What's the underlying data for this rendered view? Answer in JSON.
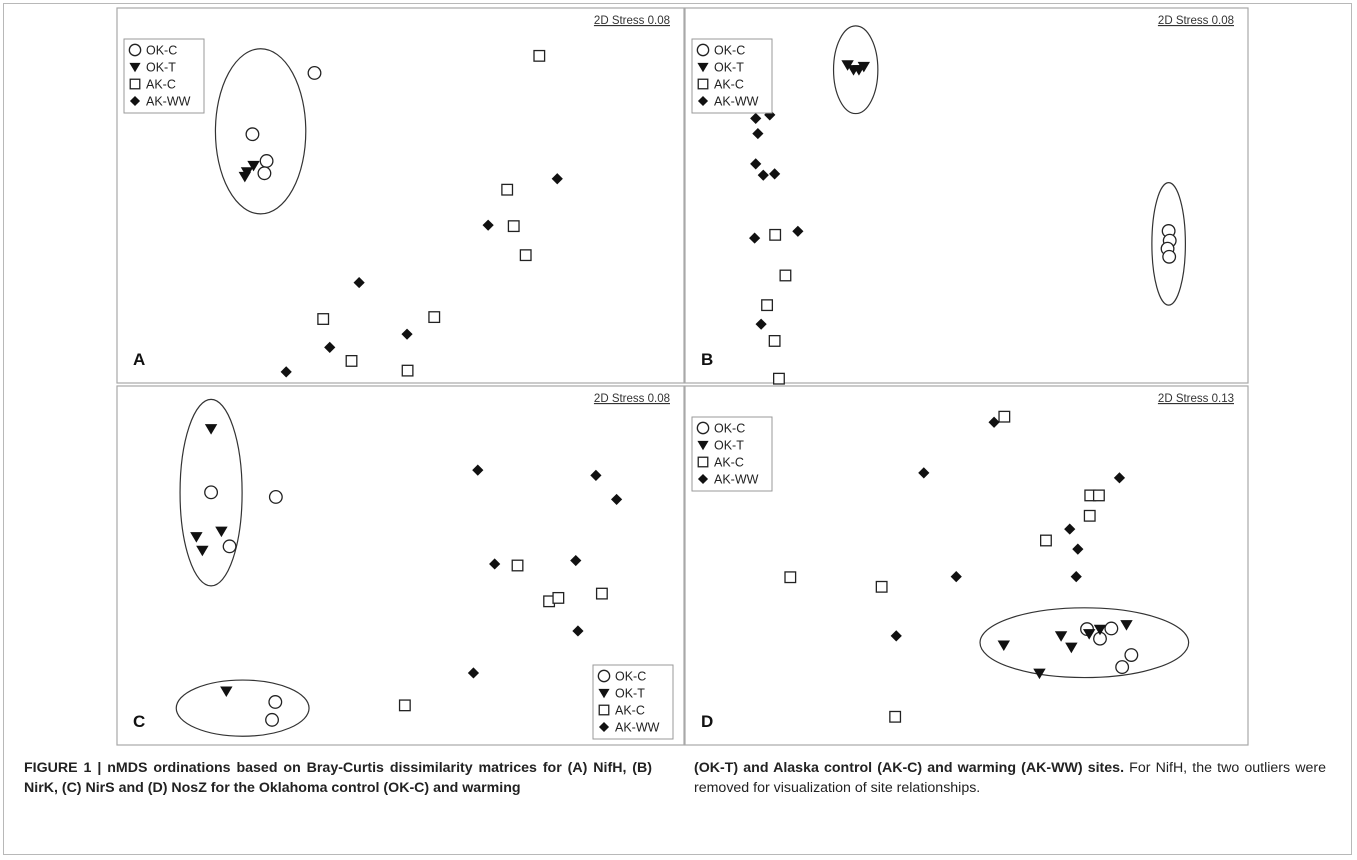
{
  "figure": {
    "caption_label": "FIGURE 1 |",
    "caption_left_bold": "nMDS ordinations based on Bray-Curtis dissimilarity matrices for (A) NifH, (B) NirK, (C) NirS and (D) NosZ for the Oklahoma control (OK-C) and warming",
    "caption_right_bold": "(OK-T) and Alaska control (AK-C) and warming (AK-WW) sites.",
    "caption_right_normal": "For NifH, the two outliers were removed for visualization of site relationships."
  },
  "chart_data": [
    {
      "type": "scatter",
      "panel": "A",
      "stress_label": "2D Stress 0.08",
      "legend": [
        "OK-C",
        "OK-T",
        "AK-C",
        "AK-WW"
      ],
      "legend_position": "top-left",
      "axes": "none",
      "series": [
        {
          "name": "OK-C",
          "marker": "open-circle",
          "points": [
            [
              0.342,
              0.12
            ],
            [
              0.228,
              0.31
            ],
            [
              0.254,
              0.393
            ],
            [
              0.25,
              0.431
            ]
          ]
        },
        {
          "name": "OK-T",
          "marker": "filled-down-triangle",
          "points": [
            [
              0.218,
              0.427
            ],
            [
              0.23,
              0.407
            ],
            [
              0.214,
              0.441
            ]
          ]
        },
        {
          "name": "AK-C",
          "marker": "open-square",
          "points": [
            [
              0.755,
              0.067
            ],
            [
              0.696,
              0.482
            ],
            [
              0.708,
              0.595
            ],
            [
              0.73,
              0.685
            ],
            [
              0.358,
              0.883
            ],
            [
              0.562,
              0.877
            ],
            [
              0.41,
              1.013
            ],
            [
              0.513,
              1.043
            ]
          ]
        },
        {
          "name": "AK-WW",
          "marker": "filled-diamond",
          "points": [
            [
              0.788,
              0.448
            ],
            [
              0.661,
              0.592
            ],
            [
              0.424,
              0.77
            ],
            [
              0.512,
              0.93
            ],
            [
              0.37,
              0.971
            ],
            [
              0.29,
              1.047
            ]
          ]
        }
      ],
      "ellipses": [
        {
          "cx": 0.243,
          "cy": 0.301,
          "rx": 0.083,
          "ry": 0.256
        }
      ]
    },
    {
      "type": "scatter",
      "panel": "B",
      "stress_label": "2D Stress 0.08",
      "legend": [
        "OK-C",
        "OK-T",
        "AK-C",
        "AK-WW"
      ],
      "legend_position": "top-left",
      "axes": "none",
      "series": [
        {
          "name": "OK-C",
          "marker": "open-circle",
          "points": [
            [
              0.874,
              0.61
            ],
            [
              0.876,
              0.64
            ],
            [
              0.872,
              0.665
            ],
            [
              0.875,
              0.69
            ]
          ]
        },
        {
          "name": "OK-T",
          "marker": "filled-down-triangle",
          "points": [
            [
              0.28,
              0.095
            ],
            [
              0.291,
              0.11
            ],
            [
              0.301,
              0.11
            ],
            [
              0.31,
              0.1
            ]
          ]
        },
        {
          "name": "AK-C",
          "marker": "open-square",
          "points": [
            [
              0.146,
              0.622
            ],
            [
              0.165,
              0.748
            ],
            [
              0.131,
              0.84
            ],
            [
              0.145,
              0.951
            ],
            [
              0.153,
              1.068
            ]
          ]
        },
        {
          "name": "AK-WW",
          "marker": "filled-diamond",
          "points": [
            [
              0.11,
              0.261
            ],
            [
              0.136,
              0.25
            ],
            [
              0.114,
              0.308
            ],
            [
              0.11,
              0.402
            ],
            [
              0.124,
              0.437
            ],
            [
              0.145,
              0.433
            ],
            [
              0.188,
              0.611
            ],
            [
              0.108,
              0.632
            ],
            [
              0.12,
              0.899
            ],
            [
              0.153,
              1.107
            ]
          ]
        }
      ],
      "ellipses": [
        {
          "cx": 0.295,
          "cy": 0.11,
          "rx": 0.041,
          "ry": 0.136
        },
        {
          "cx": 0.874,
          "cy": 0.65,
          "rx": 0.031,
          "ry": 0.19
        }
      ]
    },
    {
      "type": "scatter",
      "panel": "C",
      "stress_label": "2D Stress 0.08",
      "legend": [
        "OK-C",
        "OK-T",
        "AK-C",
        "AK-WW"
      ],
      "legend_position": "bottom-right",
      "axes": "none",
      "series": [
        {
          "name": "OK-C",
          "marker": "open-circle",
          "points": [
            [
              0.152,
              0.263
            ],
            [
              0.271,
              0.278
            ],
            [
              0.186,
              0.438
            ],
            [
              0.27,
              0.942
            ],
            [
              0.264,
              1.0
            ]
          ]
        },
        {
          "name": "OK-T",
          "marker": "filled-down-triangle",
          "points": [
            [
              0.152,
              0.057
            ],
            [
              0.171,
              0.389
            ],
            [
              0.125,
              0.407
            ],
            [
              0.136,
              0.451
            ],
            [
              0.18,
              0.907
            ]
          ]
        },
        {
          "name": "AK-C",
          "marker": "open-square",
          "points": [
            [
              0.715,
              0.5
            ],
            [
              0.87,
              0.591
            ],
            [
              0.773,
              0.616
            ],
            [
              0.79,
              0.605
            ],
            [
              0.508,
              0.953
            ]
          ]
        },
        {
          "name": "AK-WW",
          "marker": "filled-diamond",
          "points": [
            [
              0.642,
              0.191
            ],
            [
              0.859,
              0.208
            ],
            [
              0.897,
              0.286
            ],
            [
              0.673,
              0.495
            ],
            [
              0.822,
              0.484
            ],
            [
              0.826,
              0.712
            ],
            [
              0.634,
              0.848
            ]
          ]
        }
      ],
      "ellipses": [
        {
          "cx": 0.152,
          "cy": 0.264,
          "rx": 0.057,
          "ry": 0.302
        },
        {
          "cx": 0.21,
          "cy": 0.962,
          "rx": 0.122,
          "ry": 0.091
        }
      ]
    },
    {
      "type": "scatter",
      "panel": "D",
      "stress_label": "2D Stress 0.13",
      "legend": [
        "OK-C",
        "OK-T",
        "AK-C",
        "AK-WW"
      ],
      "legend_position": "top-left",
      "axes": "none",
      "series": [
        {
          "name": "OK-C",
          "marker": "open-circle",
          "points": [
            [
              0.723,
              0.706
            ],
            [
              0.768,
              0.704
            ],
            [
              0.747,
              0.737
            ],
            [
              0.805,
              0.79
            ],
            [
              0.788,
              0.829
            ]
          ]
        },
        {
          "name": "OK-T",
          "marker": "filled-down-triangle",
          "points": [
            [
              0.569,
              0.758
            ],
            [
              0.675,
              0.728
            ],
            [
              0.727,
              0.721
            ],
            [
              0.747,
              0.707
            ],
            [
              0.694,
              0.765
            ],
            [
              0.635,
              0.849
            ],
            [
              0.796,
              0.692
            ]
          ]
        },
        {
          "name": "AK-C",
          "marker": "open-square",
          "points": [
            [
              0.57,
              0.018
            ],
            [
              0.729,
              0.273
            ],
            [
              0.745,
              0.273
            ],
            [
              0.728,
              0.339
            ],
            [
              0.647,
              0.419
            ],
            [
              0.174,
              0.538
            ],
            [
              0.343,
              0.569
            ],
            [
              0.368,
              0.99
            ]
          ]
        },
        {
          "name": "AK-WW",
          "marker": "filled-diamond",
          "points": [
            [
              0.551,
              0.036
            ],
            [
              0.421,
              0.2
            ],
            [
              0.783,
              0.216
            ],
            [
              0.691,
              0.382
            ],
            [
              0.706,
              0.447
            ],
            [
              0.703,
              0.536
            ],
            [
              0.481,
              0.536
            ],
            [
              0.37,
              0.728
            ]
          ]
        }
      ],
      "ellipses": [
        {
          "cx": 0.718,
          "cy": 0.75,
          "rx": 0.193,
          "ry": 0.113
        }
      ]
    }
  ]
}
